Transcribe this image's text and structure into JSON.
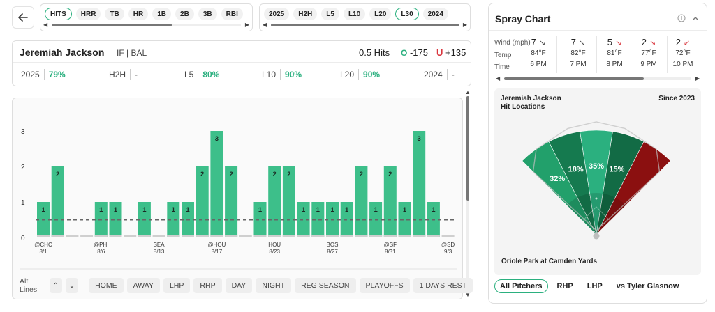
{
  "nav": {
    "back_icon": "arrow-left-icon"
  },
  "stat_filters": {
    "items": [
      "HITS",
      "HRR",
      "TB",
      "HR",
      "1B",
      "2B",
      "3B",
      "RBI"
    ],
    "active": "HITS"
  },
  "range_filters": {
    "items": [
      "2025",
      "H2H",
      "L5",
      "L10",
      "L20",
      "L30",
      "2024"
    ],
    "active": "L30"
  },
  "player": {
    "name": "Jeremiah Jackson",
    "position_team": "IF | BAL",
    "line": "0.5 Hits",
    "over_symbol": "O",
    "over_odds": "-175",
    "under_symbol": "U",
    "under_odds": "+135",
    "splits": [
      {
        "label": "2025",
        "value": "79%"
      },
      {
        "label": "H2H",
        "value": "-"
      },
      {
        "label": "L5",
        "value": "80%"
      },
      {
        "label": "L10",
        "value": "90%"
      },
      {
        "label": "L20",
        "value": "90%"
      },
      {
        "label": "2024",
        "value": "-"
      }
    ]
  },
  "chart_data": {
    "type": "bar",
    "title": "",
    "xlabel": "",
    "ylabel": "",
    "ylim": [
      0,
      3
    ],
    "yticks": [
      "0",
      "1",
      "2",
      "3"
    ],
    "line_value": 0.5,
    "values": [
      1,
      2,
      0,
      0,
      1,
      1,
      0,
      1,
      0,
      1,
      1,
      2,
      3,
      2,
      0,
      1,
      2,
      2,
      1,
      1,
      1,
      1,
      2,
      1,
      2,
      1,
      3,
      1,
      0
    ],
    "x_labels": [
      {
        "index": 0,
        "opp": "@CHC",
        "date": "8/1"
      },
      {
        "index": 4,
        "opp": "@PHI",
        "date": "8/6"
      },
      {
        "index": 8,
        "opp": "SEA",
        "date": "8/13"
      },
      {
        "index": 12,
        "opp": "@HOU",
        "date": "8/17"
      },
      {
        "index": 16,
        "opp": "HOU",
        "date": "8/23"
      },
      {
        "index": 20,
        "opp": "BOS",
        "date": "8/27"
      },
      {
        "index": 24,
        "opp": "@SF",
        "date": "8/31"
      },
      {
        "index": 28,
        "opp": "@SD",
        "date": "9/3"
      }
    ],
    "bar_color": "#3dbf8a",
    "zero_color": "#cfcfcf"
  },
  "chart_controls": {
    "alt_lines_label": "Alt Lines",
    "up_icon": "chevron-up-icon",
    "down_icon": "chevron-down-icon",
    "filters": [
      "HOME",
      "AWAY",
      "LHP",
      "RHP",
      "DAY",
      "NIGHT",
      "REG SEASON",
      "PLAYOFFS",
      "1 DAYS REST"
    ]
  },
  "spray": {
    "title": "Spray Chart",
    "info_icon": "info-icon",
    "collapse_icon": "chevron-up-icon",
    "weather_labels": {
      "wind": "Wind (mph)",
      "temp": "Temp",
      "time": "Time"
    },
    "weather": [
      {
        "wind": "7",
        "dir": "↘",
        "dir_color": "#444444",
        "temp": "84°F",
        "time": "6 PM"
      },
      {
        "wind": "7",
        "dir": "↘",
        "dir_color": "#444444",
        "temp": "82°F",
        "time": "7 PM"
      },
      {
        "wind": "5",
        "dir": "↘",
        "dir_color": "#d9363e",
        "temp": "81°F",
        "time": "8 PM"
      },
      {
        "wind": "2",
        "dir": "↘",
        "dir_color": "#d9363e",
        "temp": "77°F",
        "time": "9 PM"
      },
      {
        "wind": "2",
        "dir": "↙",
        "dir_color": "#d9363e",
        "temp": "72°F",
        "time": "10 PM"
      }
    ],
    "player_label": "Jeremiah Jackson",
    "subtitle": "Hit Locations",
    "since": "Since 2023",
    "park": "Oriole Park at Camden Yards",
    "zones": [
      {
        "label": "32%",
        "color": "#22a06b"
      },
      {
        "label": "18%",
        "color": "#157a4f"
      },
      {
        "label": "35%",
        "color": "#2bb07f"
      },
      {
        "label": "15%",
        "color": "#126b45"
      },
      {
        "label": "",
        "color": "#8b1010"
      }
    ],
    "pitcher_tabs": [
      "All Pitchers",
      "RHP",
      "LHP",
      "vs Tyler Glasnow"
    ],
    "active_tab": "All Pitchers"
  }
}
